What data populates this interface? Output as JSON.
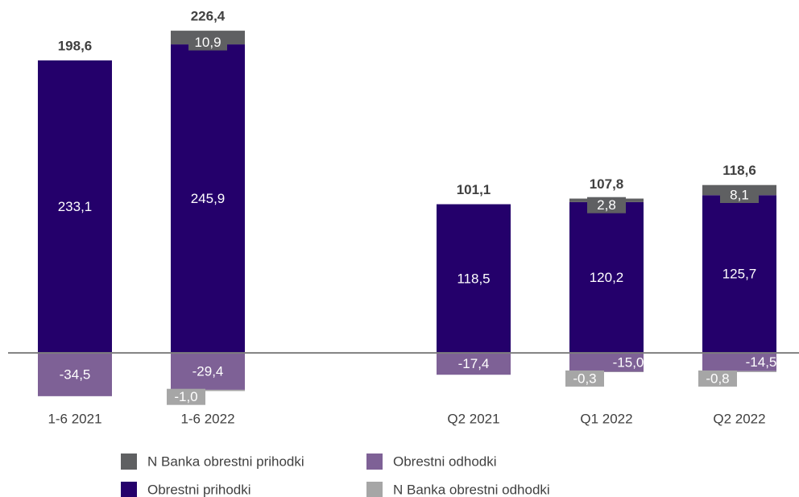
{
  "chart_data": {
    "type": "stacked_bar",
    "categories": [
      "1-6 2021",
      "1-6 2022",
      null,
      "Q2 2021",
      "Q1 2022",
      "Q2 2022"
    ],
    "series": [
      {
        "name": "N Banka obrestni prihodki",
        "color": "#5f6062",
        "values": [
          null,
          10.9,
          null,
          null,
          2.8,
          8.1
        ],
        "value_labels": [
          null,
          "10,9",
          null,
          null,
          "2,8",
          "8,1"
        ]
      },
      {
        "name": "Obrestni prihodki",
        "color": "#24006b",
        "values": [
          233.1,
          245.9,
          null,
          118.5,
          120.2,
          125.7
        ],
        "value_labels": [
          "233,1",
          "245,9",
          null,
          "118,5",
          "120,2",
          "125,7"
        ]
      },
      {
        "name": "Obrestni odhodki",
        "color": "#7e6196",
        "values": [
          -34.5,
          -29.4,
          null,
          -17.4,
          -15.0,
          -14.5
        ],
        "value_labels": [
          "-34,5",
          "-29,4",
          null,
          "-17,4",
          "-15,0",
          "-14,5"
        ]
      },
      {
        "name": "N Banka obrestni odhodki",
        "color": "#a6a6a6",
        "values": [
          null,
          -1.0,
          null,
          null,
          -0.3,
          -0.8
        ],
        "value_labels": [
          null,
          "-1,0",
          null,
          null,
          "-0,3",
          "-0,8"
        ]
      }
    ],
    "totals": [
      198.6,
      226.4,
      null,
      101.1,
      107.8,
      118.6
    ],
    "total_labels": [
      "198,6",
      "226,4",
      null,
      "101,1",
      "107,8",
      "118,6"
    ],
    "ylim": [
      -50,
      262
    ]
  }
}
